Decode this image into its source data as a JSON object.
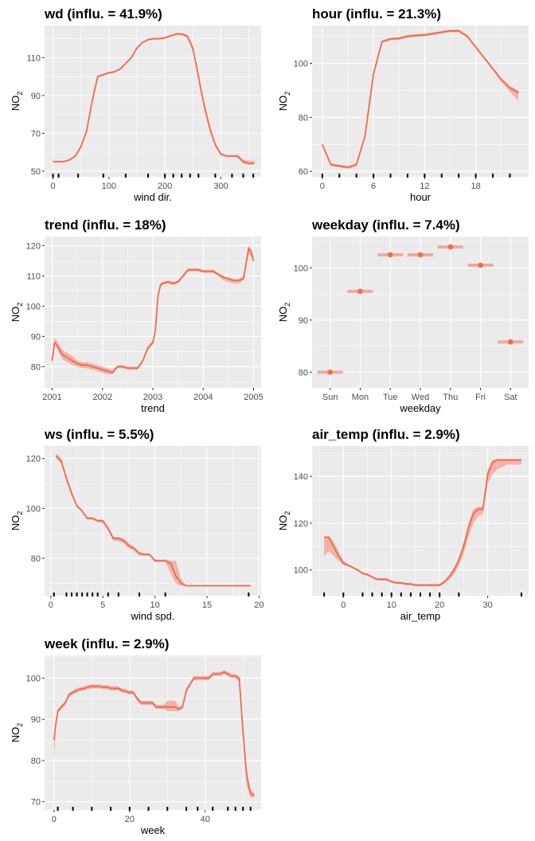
{
  "colors": {
    "line": "#f4694a",
    "band": "#f0a9a0",
    "panel": "#ebebeb",
    "grid": "#ffffff"
  },
  "chart_data": [
    {
      "id": "wd",
      "type": "line",
      "title": "wd (influ. = 41.9%)",
      "xlabel": "wind dir.",
      "ylabel": "NO2",
      "xlim": [
        -15,
        372
      ],
      "ylim": [
        47,
        127
      ],
      "xticks": [
        0,
        100,
        200,
        300
      ],
      "yticks": [
        50,
        70,
        90,
        110
      ],
      "rug": [
        0,
        10,
        45,
        90,
        130,
        170,
        200,
        215,
        230,
        245,
        260,
        290,
        320,
        340,
        358
      ],
      "x": [
        0,
        10,
        20,
        30,
        40,
        50,
        60,
        70,
        80,
        90,
        100,
        110,
        120,
        130,
        140,
        150,
        160,
        170,
        180,
        190,
        200,
        210,
        220,
        230,
        240,
        250,
        260,
        270,
        280,
        290,
        300,
        310,
        320,
        330,
        340,
        350,
        360
      ],
      "y": [
        55,
        55,
        55,
        56,
        58,
        63,
        71,
        87,
        100,
        101,
        102,
        102.5,
        104,
        107,
        110,
        115,
        118,
        119.5,
        120,
        120,
        120.5,
        121.5,
        122.5,
        122.5,
        121.5,
        115,
        100,
        85,
        73,
        64,
        59,
        58,
        58,
        58,
        55,
        54,
        54
      ],
      "lower": [
        55,
        55,
        55,
        55.5,
        57.5,
        62,
        70,
        86,
        99.5,
        100.5,
        101.5,
        102,
        103.5,
        106.5,
        109.5,
        114.5,
        117.5,
        119,
        119.5,
        119.5,
        120,
        121,
        122,
        122,
        120.5,
        113,
        98,
        83,
        71,
        63,
        58.5,
        57.5,
        57.5,
        57,
        54,
        53.5,
        53.5
      ],
      "upper": [
        55.5,
        55.5,
        55.5,
        56.5,
        58.5,
        64,
        72,
        88,
        100.5,
        101.5,
        102.5,
        103,
        104.5,
        107.5,
        110.5,
        115.5,
        118.5,
        120,
        120.5,
        120.5,
        121,
        122,
        123,
        123,
        122,
        116,
        101,
        86,
        74,
        65,
        59.5,
        58.5,
        58.5,
        58.5,
        56,
        55.5,
        55.5
      ]
    },
    {
      "id": "hour",
      "type": "line",
      "title": "hour (influ. = 21.3%)",
      "xlabel": "hour",
      "ylabel": "NO2",
      "xlim": [
        -1.2,
        24.2
      ],
      "ylim": [
        58,
        114
      ],
      "xticks": [
        0,
        6,
        12,
        18
      ],
      "yticks": [
        60,
        80,
        100
      ],
      "rug": [
        0,
        2,
        4,
        6,
        8,
        10,
        12,
        14,
        16,
        18,
        20,
        22
      ],
      "x": [
        0,
        1,
        2,
        3,
        4,
        5,
        6,
        7,
        8,
        9,
        10,
        11,
        12,
        13,
        14,
        15,
        16,
        17,
        18,
        19,
        20,
        21,
        22,
        23
      ],
      "y": [
        70,
        62.5,
        62,
        61.5,
        62.5,
        73,
        96,
        108,
        109,
        109.2,
        110,
        110.3,
        110.5,
        111,
        111.5,
        112,
        112,
        110,
        106,
        102,
        98,
        94,
        91,
        89
      ],
      "lower": [
        69.5,
        62,
        61.5,
        61,
        62,
        72.5,
        95.5,
        107.5,
        108.5,
        108.7,
        109.5,
        109.8,
        110,
        110.5,
        111,
        111.5,
        111.5,
        109.5,
        105.5,
        101.5,
        97.5,
        93,
        89.5,
        86
      ],
      "upper": [
        70.5,
        63,
        62.5,
        62,
        63,
        73.5,
        96.5,
        108.5,
        109.5,
        109.7,
        110.5,
        110.8,
        111,
        111.5,
        112,
        112.5,
        112.5,
        110.5,
        106.5,
        102.5,
        98.5,
        94.5,
        91.5,
        90
      ]
    },
    {
      "id": "trend",
      "type": "line",
      "title": "trend (influ. = 18%)",
      "xlabel": "trend",
      "ylabel": "NO2",
      "xlim": [
        2000.85,
        2005.15
      ],
      "ylim": [
        73,
        123
      ],
      "xticks": [
        2001,
        2002,
        2003,
        2004,
        2005
      ],
      "xticklabels": [
        "2001",
        "2002",
        "2003",
        "2004",
        "2005"
      ],
      "yticks": [
        80,
        90,
        100,
        110,
        120
      ],
      "x": [
        2001,
        2001.05,
        2001.1,
        2001.2,
        2001.3,
        2001.4,
        2001.5,
        2001.6,
        2001.7,
        2001.8,
        2001.9,
        2002,
        2002.1,
        2002.2,
        2002.3,
        2002.4,
        2002.5,
        2002.6,
        2002.7,
        2002.8,
        2002.9,
        2003,
        2003.05,
        2003.1,
        2003.15,
        2003.2,
        2003.3,
        2003.4,
        2003.5,
        2003.6,
        2003.7,
        2003.8,
        2003.9,
        2004,
        2004.1,
        2004.2,
        2004.3,
        2004.4,
        2004.5,
        2004.6,
        2004.7,
        2004.8,
        2004.9,
        2004.95,
        2005
      ],
      "y": [
        82,
        88,
        87,
        84,
        83,
        82,
        81,
        80.5,
        80.5,
        80,
        79.5,
        79,
        78.5,
        78,
        80,
        80,
        79.5,
        79.5,
        79.5,
        82,
        86,
        88,
        92,
        103,
        107,
        107.5,
        108,
        107.5,
        108,
        110,
        112,
        112,
        112,
        111.5,
        111.5,
        111.5,
        110.5,
        109.5,
        109,
        108.5,
        108.5,
        109,
        119,
        118,
        115
      ],
      "lower": [
        80,
        87,
        86,
        82.5,
        81.5,
        80.5,
        80,
        79.5,
        79.5,
        79,
        78.5,
        78,
        77.5,
        77.5,
        79.5,
        79.5,
        79,
        79,
        79,
        81.5,
        85.5,
        87.5,
        91.5,
        102,
        106.5,
        107,
        107.5,
        107,
        107.5,
        109.5,
        111.5,
        111.5,
        111.5,
        111,
        111,
        111,
        110,
        108.5,
        108,
        107.5,
        107.5,
        108.5,
        117,
        116.5,
        114
      ],
      "upper": [
        84,
        89.5,
        88.5,
        85.5,
        84.5,
        83.5,
        82,
        81.5,
        81.5,
        81,
        80.5,
        80,
        79.5,
        79,
        80.5,
        80.5,
        80,
        80,
        80,
        82.5,
        87,
        88.5,
        93,
        104,
        107.5,
        108,
        108.5,
        108,
        108.5,
        110.5,
        112.5,
        112.5,
        112.5,
        112,
        112,
        112,
        111,
        110,
        109.5,
        109,
        109,
        110,
        120,
        119,
        116
      ]
    },
    {
      "id": "weekday",
      "type": "scatter",
      "title": "weekday (influ. = 7.4%)",
      "xlabel": "weekday",
      "ylabel": "NO2",
      "categories": [
        "Sun",
        "Mon",
        "Tue",
        "Wed",
        "Thu",
        "Fri",
        "Sat"
      ],
      "values": [
        80,
        95.5,
        102.5,
        102.5,
        104,
        100.5,
        85.8
      ],
      "ylim": [
        77,
        106
      ],
      "yticks": [
        80,
        90,
        100
      ]
    },
    {
      "id": "ws",
      "type": "line",
      "title": "ws (influ. = 5.5%)",
      "xlabel": "wind spd.",
      "ylabel": "NO2",
      "xlim": [
        -0.6,
        20.2
      ],
      "ylim": [
        65,
        125
      ],
      "xticks": [
        0,
        5,
        10,
        15,
        20
      ],
      "yticks": [
        80,
        100,
        120
      ],
      "rug": [
        0.3,
        1.5,
        2.0,
        2.5,
        3.0,
        3.5,
        4.0,
        4.5,
        5.5,
        6.5,
        8.5,
        11.0,
        19.0
      ],
      "x": [
        0.5,
        1,
        1.5,
        2,
        2.5,
        3,
        3.5,
        4,
        4.5,
        5,
        5.5,
        6,
        6.5,
        7,
        7.5,
        8,
        8.5,
        9,
        9.5,
        10,
        10.5,
        11,
        11.5,
        12,
        12.5,
        13,
        14,
        15,
        16,
        17,
        18,
        19.2
      ],
      "y": [
        121,
        119,
        112,
        106,
        101,
        99,
        96,
        96,
        95,
        95,
        92,
        88,
        88,
        87,
        85,
        84,
        82,
        81.5,
        81.5,
        79,
        79,
        79,
        78,
        73,
        70,
        69,
        69,
        69,
        69,
        69,
        69,
        69
      ],
      "lower": [
        120,
        118,
        111,
        105,
        100.5,
        98.5,
        95.5,
        95.5,
        94.5,
        94,
        91,
        87,
        87,
        86,
        84,
        83,
        81,
        81,
        81,
        78.5,
        78.5,
        78.5,
        74,
        70,
        69,
        69,
        69,
        69,
        69,
        69,
        69,
        69
      ],
      "upper": [
        122,
        120,
        113,
        107,
        101.5,
        99.5,
        96.5,
        96.5,
        95.5,
        95.5,
        92.5,
        88.5,
        88.5,
        88,
        86,
        84.5,
        82.5,
        82,
        82,
        79.5,
        79.5,
        79.5,
        79,
        79,
        72,
        69,
        69,
        69,
        69,
        69,
        69,
        69
      ]
    },
    {
      "id": "air_temp",
      "type": "line",
      "title": "air_temp (influ. = 2.9%)",
      "xlabel": "air_temp",
      "ylabel": "NO2",
      "xlim": [
        -6.5,
        38.5
      ],
      "ylim": [
        89,
        153
      ],
      "xticks": [
        0,
        10,
        20,
        30
      ],
      "yticks": [
        100,
        120,
        140
      ],
      "rug": [
        -4,
        0,
        4,
        6,
        8,
        10,
        12,
        14,
        16,
        18,
        20,
        24,
        37
      ],
      "x": [
        -4,
        -3,
        -2,
        -1,
        0,
        1,
        2,
        3,
        4,
        5,
        6,
        7,
        8,
        9,
        10,
        11,
        12,
        13,
        14,
        15,
        16,
        17,
        18,
        19,
        20,
        21,
        22,
        23,
        24,
        25,
        26,
        27,
        28,
        29,
        30,
        31,
        32,
        33,
        34,
        35,
        36,
        37
      ],
      "y": [
        114,
        114,
        110,
        106,
        103,
        102,
        101,
        100,
        98.5,
        98,
        97,
        96,
        96,
        96,
        95,
        94.5,
        94.5,
        94,
        94,
        93.5,
        93.5,
        93.5,
        93.5,
        93.5,
        93.5,
        95,
        97,
        100,
        104,
        110,
        118,
        124,
        126,
        126,
        141,
        146,
        147,
        147,
        147,
        147,
        147,
        147
      ],
      "lower": [
        106,
        108,
        106,
        104,
        102,
        101.5,
        100.5,
        99.5,
        98,
        97.5,
        96.5,
        95.5,
        95.5,
        95.5,
        94.5,
        94,
        94,
        93.5,
        93.5,
        93,
        93,
        93,
        93,
        93,
        93,
        94,
        96,
        98,
        102,
        107,
        114,
        120,
        123,
        124,
        137,
        141,
        143,
        144,
        145,
        145,
        145,
        145
      ],
      "upper": [
        114,
        114.5,
        112,
        108,
        104,
        102.5,
        101.5,
        100.5,
        99,
        98.5,
        97.5,
        96.5,
        96.5,
        96.5,
        95.5,
        95,
        95,
        94.5,
        94.5,
        94,
        94,
        94,
        94,
        94,
        94,
        95.5,
        98,
        101,
        105.5,
        112,
        120,
        126,
        127,
        127,
        143,
        147,
        147.5,
        147.5,
        147.5,
        147.5,
        147.5,
        147.5
      ]
    },
    {
      "id": "week",
      "type": "line",
      "title": "week (influ. = 2.9%)",
      "xlabel": "week",
      "ylabel": "NO2",
      "xlim": [
        -2.5,
        54.8
      ],
      "ylim": [
        68,
        105.5
      ],
      "xticks": [
        0,
        20,
        40
      ],
      "yticks": [
        70,
        80,
        90,
        100
      ],
      "rug": [
        1,
        5,
        10,
        15,
        20,
        25,
        30,
        35,
        38,
        42,
        46,
        48,
        50,
        52
      ],
      "x": [
        0,
        0.5,
        1,
        2,
        3,
        4,
        5,
        6,
        7,
        8,
        9,
        10,
        11,
        12,
        13,
        14,
        15,
        16,
        17,
        18,
        19,
        20,
        21,
        22,
        23,
        24,
        25,
        26,
        27,
        28,
        29,
        30,
        31,
        32,
        33,
        34,
        35,
        36,
        37,
        38,
        39,
        40,
        41,
        42,
        43,
        44,
        45,
        46,
        47,
        48,
        49,
        50,
        51,
        52,
        53
      ],
      "y": [
        85,
        89,
        92,
        93,
        94,
        96,
        96.5,
        97,
        97.3,
        97.5,
        97.8,
        98,
        98,
        98,
        97.8,
        97.8,
        97.5,
        97.5,
        97.5,
        97,
        96.8,
        96.5,
        96.5,
        95,
        94,
        94,
        94,
        94,
        93,
        93,
        93,
        93,
        93,
        93,
        92.5,
        93,
        97,
        98.5,
        100,
        100,
        100,
        100,
        100,
        101,
        101,
        101,
        101.5,
        101,
        100.5,
        100.5,
        100,
        87,
        76,
        72,
        71.5
      ],
      "lower": [
        80,
        88,
        91.5,
        92.5,
        93.5,
        95.5,
        96,
        96.5,
        96.8,
        97,
        97.3,
        97.5,
        97.5,
        97.5,
        97.3,
        97.3,
        97,
        97,
        97,
        96.5,
        96.3,
        96,
        96,
        94.5,
        93.5,
        93.5,
        93.5,
        93.5,
        92.5,
        92.5,
        92.5,
        92,
        92,
        92,
        92,
        92.5,
        96.5,
        98,
        99.5,
        99.5,
        99.5,
        99.5,
        99.5,
        100.5,
        100.5,
        100.5,
        101,
        100.5,
        100,
        100,
        99,
        85,
        74,
        71,
        71
      ],
      "upper": [
        86,
        90,
        92.5,
        93.5,
        94.5,
        96.5,
        97,
        97.5,
        97.8,
        98,
        98.3,
        98.5,
        98.5,
        98.5,
        98.3,
        98.3,
        98,
        98,
        98,
        97.5,
        97.3,
        97,
        97,
        95.5,
        94.5,
        94.5,
        94.5,
        94.5,
        93.5,
        93.5,
        93.5,
        94.5,
        94.5,
        94.5,
        93,
        93.5,
        97.5,
        99,
        100.5,
        100.5,
        100.5,
        100.5,
        100.5,
        101.5,
        101.5,
        101.5,
        102,
        101.5,
        101,
        101,
        100.5,
        88,
        78,
        73,
        72
      ]
    }
  ]
}
